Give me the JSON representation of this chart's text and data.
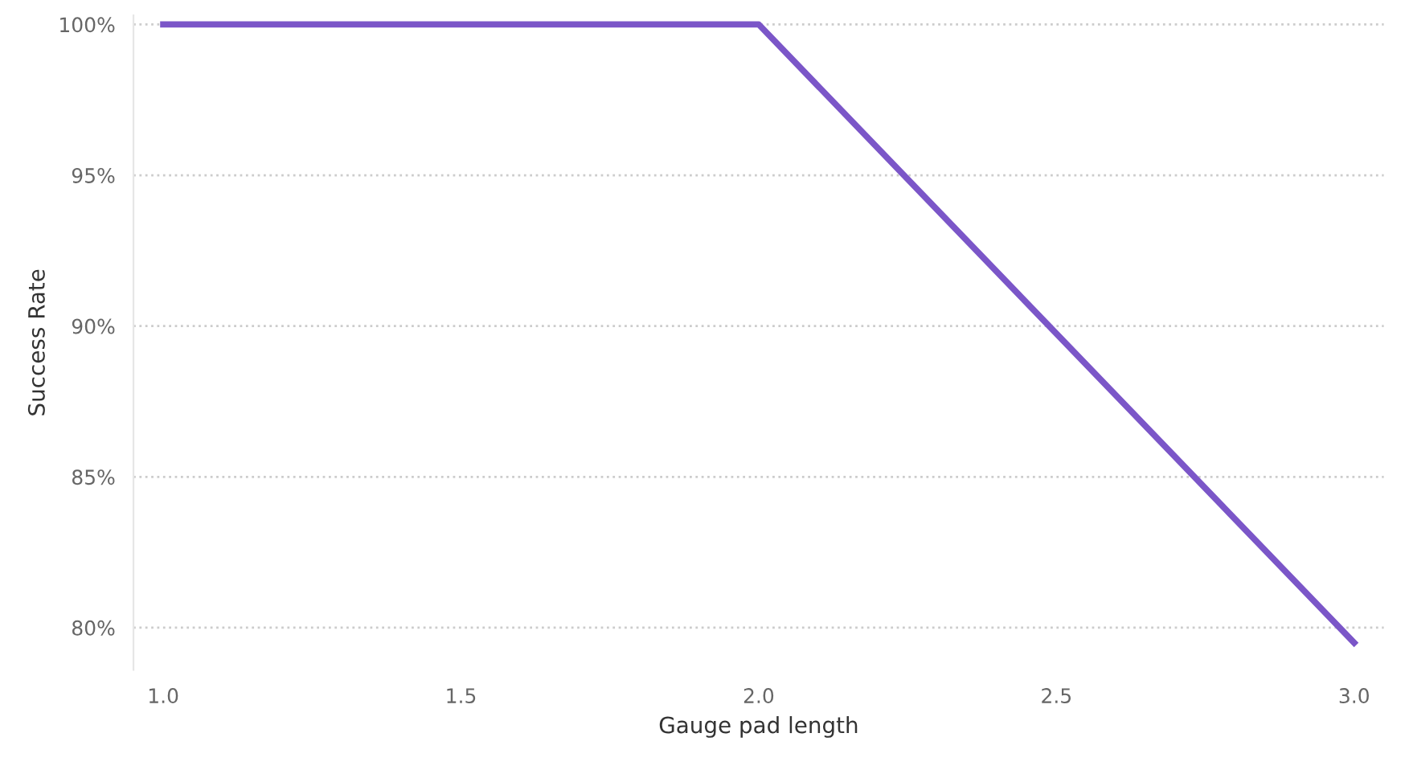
{
  "chart_data": {
    "type": "line",
    "xlabel": "Gauge pad length",
    "ylabel": "Success Rate",
    "x": [
      1.0,
      2.0,
      3.0
    ],
    "series": [
      {
        "color": "#7b56c8",
        "values": [
          100,
          100,
          79.5
        ]
      }
    ],
    "xlim": [
      0.95,
      3.05
    ],
    "xticks": [
      {
        "value": 1.0,
        "label": "1.0"
      },
      {
        "value": 1.5,
        "label": "1.5"
      },
      {
        "value": 2.0,
        "label": "2.0"
      },
      {
        "value": 2.5,
        "label": "2.5"
      },
      {
        "value": 3.0,
        "label": "3.0"
      }
    ],
    "ylim": [
      78.6,
      100.3
    ],
    "yticks": [
      {
        "value": 80,
        "label": "80%"
      },
      {
        "value": 85,
        "label": "85%"
      },
      {
        "value": 90,
        "label": "90%"
      },
      {
        "value": 95,
        "label": "95%"
      },
      {
        "value": 100,
        "label": "100%"
      }
    ],
    "grid": "y",
    "line_style": "solid"
  }
}
